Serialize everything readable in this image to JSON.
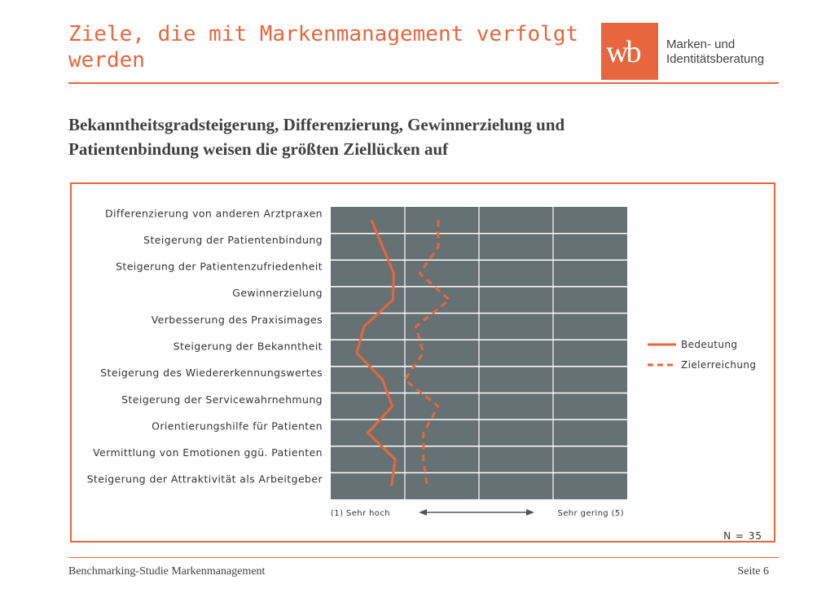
{
  "header": {
    "title_line1": "Ziele, die mit Markenmanagement verfolgt",
    "title_line2": "werden",
    "logo_mark": "wb",
    "logo_line1": "Marken- und",
    "logo_line2": "Identitätsberatung"
  },
  "subtitle_line1": "Bekanntheitsgradsteigerung, Differenzierung, Gewinnerzielung und",
  "subtitle_line2": "Patientenbindung weisen die größten Ziellücken auf",
  "chart_data": {
    "type": "line",
    "orientation": "horizontal",
    "categories": [
      "Differenzierung von anderen Arztpraxen",
      "Steigerung der Patientenbindung",
      "Steigerung der Patientenzufriedenheit",
      "Gewinnerzielung",
      "Verbesserung des Praxisimages",
      "Steigerung der Bekanntheit",
      "Steigerung des Wiedererkennungswertes",
      "Steigerung der Servicewahrnehmung",
      "Orientierungshilfe für Patienten",
      "Vermittlung von Emotionen ggü. Patienten",
      "Steigerung der Attraktivität als Arbeitgeber"
    ],
    "series": [
      {
        "name": "Bedeutung",
        "style": "solid",
        "values": [
          1.55,
          1.7,
          1.85,
          1.84,
          1.45,
          1.35,
          1.7,
          1.83,
          1.5,
          1.87,
          1.82
        ]
      },
      {
        "name": "Zielerreichung",
        "style": "dashed",
        "values": [
          2.45,
          2.45,
          2.2,
          2.6,
          2.15,
          2.25,
          2.0,
          2.45,
          2.25,
          2.25,
          2.3
        ]
      }
    ],
    "xlim": [
      1,
      5
    ],
    "x_min_label": "(1) Sehr hoch",
    "x_max_label": "Sehr gering (5)",
    "legend_position": "right",
    "sample_size": "N = 35",
    "colors": {
      "line": "#e8663d",
      "plot_bg": "#667173",
      "grid": "#ffffff"
    }
  },
  "footer": {
    "left": "Benchmarking-Studie Markenmanagement",
    "right": "Seite 6"
  }
}
